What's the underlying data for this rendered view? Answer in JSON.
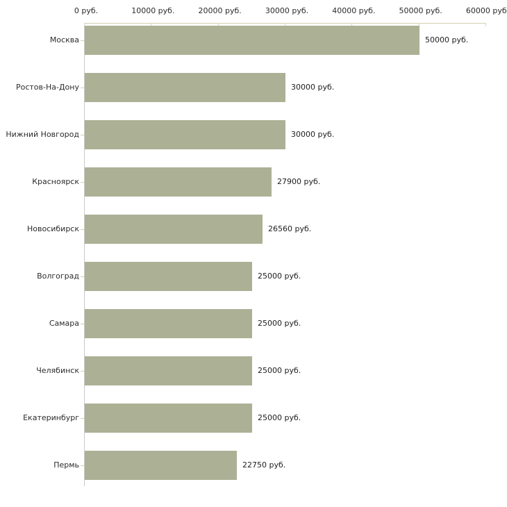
{
  "chart_data": {
    "type": "bar",
    "orientation": "horizontal",
    "title": "",
    "xlabel": "",
    "ylabel": "",
    "unit": "руб.",
    "categories": [
      "Москва",
      "Ростов-На-Дону",
      "Нижний Новгород",
      "Красноярск",
      "Новосибирск",
      "Волгоград",
      "Самара",
      "Челябинск",
      "Екатеринбург",
      "Пермь"
    ],
    "values": [
      50000,
      30000,
      30000,
      27900,
      26560,
      25000,
      25000,
      25000,
      25000,
      22750
    ],
    "value_labels": [
      "50000 руб.",
      "30000 руб.",
      "30000 руб.",
      "27900 руб.",
      "26560 руб.",
      "25000 руб.",
      "25000 руб.",
      "25000 руб.",
      "25000 руб.",
      "22750 руб."
    ],
    "x_axis": {
      "position": "top",
      "range": [
        0,
        60000
      ],
      "ticks": [
        0,
        10000,
        20000,
        30000,
        40000,
        50000,
        60000
      ],
      "tick_labels": [
        "0 руб.",
        "10000 руб.",
        "20000 руб.",
        "30000 руб.",
        "40000 руб.",
        "50000 руб.",
        "60000 руб."
      ]
    },
    "grid": false,
    "legend": false,
    "colors": {
      "bar": "#acb196",
      "x_axis_line": "#d2cfb2",
      "x_tick": "#d8d5bc",
      "y_axis_line": "#c9c9c9",
      "y_tick": "#d2cfb2",
      "label_text": "#2b2b2b",
      "value_text": "#1c1c1c",
      "background": "#ffffff"
    }
  }
}
